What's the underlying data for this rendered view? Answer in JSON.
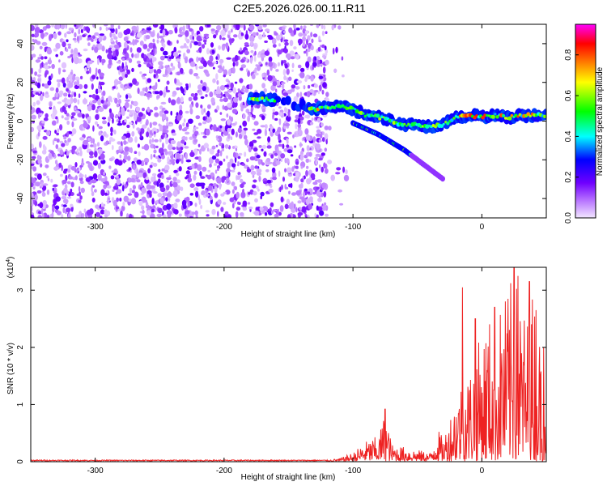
{
  "figure": {
    "title": "C2E5.2026.026.00.11.R11"
  },
  "chart_data": [
    {
      "type": "heatmap",
      "name": "spectrogram",
      "title": "C2E5.2026.026.00.11.R11",
      "xlabel": "Height of straight line (km)",
      "ylabel": "Frequency (Hz)",
      "xlim": [
        -350,
        50
      ],
      "ylim": [
        -50,
        50
      ],
      "xticks": [
        -300,
        -200,
        -100,
        0
      ],
      "yticks": [
        -40,
        -20,
        0,
        20,
        40
      ],
      "colorbar": {
        "label": "Normalized spectral amplitude",
        "range": [
          0.0,
          0.95
        ],
        "ticks": [
          0.0,
          0.2,
          0.4,
          0.6,
          0.8
        ],
        "colormap": [
          "#f2e6ff",
          "#b066ff",
          "#7000ff",
          "#0000ff",
          "#00ffff",
          "#00ff00",
          "#ffff00",
          "#ff8000",
          "#ff0000",
          "#ff00ff"
        ]
      },
      "noise_region_km": [
        -350,
        -120
      ],
      "signal_track": {
        "main": [
          [
            -180,
            12
          ],
          [
            -165,
            11
          ],
          [
            -150,
            10
          ],
          [
            -130,
            6
          ],
          [
            -120,
            7
          ],
          [
            -110,
            8
          ],
          [
            -100,
            6
          ],
          [
            -90,
            3
          ],
          [
            -80,
            2
          ],
          [
            -70,
            0
          ],
          [
            -60,
            -2
          ],
          [
            -50,
            -2
          ],
          [
            -40,
            -3
          ],
          [
            -30,
            -2
          ],
          [
            -20,
            2
          ],
          [
            -10,
            3
          ],
          [
            0,
            2
          ],
          [
            10,
            3
          ],
          [
            20,
            2
          ],
          [
            30,
            3
          ],
          [
            40,
            3
          ],
          [
            50,
            3
          ]
        ],
        "branch": [
          [
            -100,
            -1
          ],
          [
            -90,
            -4
          ],
          [
            -80,
            -7
          ],
          [
            -70,
            -11
          ],
          [
            -60,
            -15
          ],
          [
            -50,
            -20
          ],
          [
            -40,
            -25
          ],
          [
            -30,
            -30
          ]
        ]
      }
    },
    {
      "type": "line",
      "name": "snr",
      "xlabel": "Height of straight line (km)",
      "ylabel": "SNR (10 * v/v)",
      "multiplier": "(x10",
      "multiplier_exp": "4",
      "multiplier_close": ")",
      "xlim": [
        -350,
        50
      ],
      "ylim": [
        0,
        3.4
      ],
      "xticks": [
        -300,
        -200,
        -100,
        0
      ],
      "yticks": [
        0,
        1,
        2,
        3
      ],
      "color": "#ee2222",
      "series": [
        {
          "name": "SNR",
          "envelope": [
            [
              -350,
              0.02
            ],
            [
              -120,
              0.02
            ],
            [
              -110,
              0.05
            ],
            [
              -100,
              0.15
            ],
            [
              -90,
              0.35
            ],
            [
              -80,
              0.45
            ],
            [
              -75,
              0.9
            ],
            [
              -70,
              0.3
            ],
            [
              -60,
              0.25
            ],
            [
              -50,
              0.2
            ],
            [
              -40,
              0.15
            ],
            [
              -35,
              0.6
            ],
            [
              -30,
              0.4
            ],
            [
              -25,
              0.8
            ],
            [
              -20,
              1.2
            ],
            [
              -15,
              1.5
            ],
            [
              -10,
              1.6
            ],
            [
              -5,
              2.0
            ],
            [
              0,
              2.2
            ],
            [
              5,
              2.6
            ],
            [
              10,
              2.3
            ],
            [
              15,
              2.8
            ],
            [
              20,
              3.0
            ],
            [
              25,
              3.3
            ],
            [
              30,
              2.9
            ],
            [
              35,
              2.5
            ],
            [
              40,
              3.1
            ],
            [
              45,
              2.2
            ],
            [
              50,
              2.1
            ]
          ],
          "peaks": [
            [
              -75,
              0.92
            ],
            [
              -15,
              3.05
            ],
            [
              -5,
              2.5
            ],
            [
              10,
              2.7
            ],
            [
              25,
              3.4
            ],
            [
              28,
              3.25
            ],
            [
              37,
              3.15
            ],
            [
              42,
              2.65
            ],
            [
              48,
              2.0
            ]
          ]
        }
      ]
    }
  ]
}
